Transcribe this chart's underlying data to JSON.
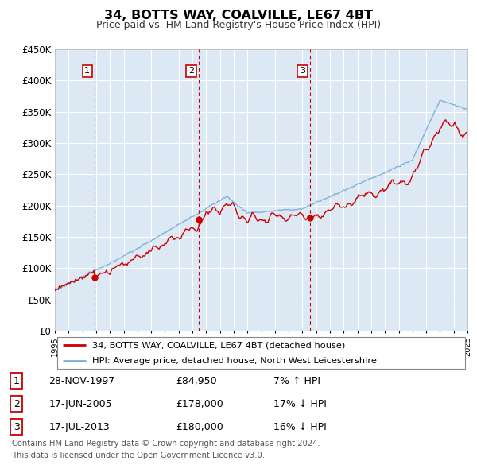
{
  "title": "34, BOTTS WAY, COALVILLE, LE67 4BT",
  "subtitle": "Price paid vs. HM Land Registry's House Price Index (HPI)",
  "x_start_year": 1995,
  "x_end_year": 2025,
  "y_min": 0,
  "y_max": 450000,
  "y_ticks": [
    0,
    50000,
    100000,
    150000,
    200000,
    250000,
    300000,
    350000,
    400000,
    450000
  ],
  "y_tick_labels": [
    "£0",
    "£50K",
    "£100K",
    "£150K",
    "£200K",
    "£250K",
    "£300K",
    "£350K",
    "£400K",
    "£450K"
  ],
  "sale_color": "#cc0000",
  "hpi_color": "#7ab0d4",
  "background_color": "#dce9f5",
  "grid_color": "#ffffff",
  "sale_dates": [
    1997.91,
    2005.46,
    2013.54
  ],
  "sale_prices": [
    84950,
    178000,
    180000
  ],
  "sale_labels": [
    "1",
    "2",
    "3"
  ],
  "sale_annotations": [
    "28-NOV-1997",
    "17-JUN-2005",
    "17-JUL-2013"
  ],
  "sale_amounts": [
    "£84,950",
    "£178,000",
    "£180,000"
  ],
  "sale_hpi_info": [
    "7% ↑ HPI",
    "17% ↓ HPI",
    "16% ↓ HPI"
  ],
  "legend_sale_label": "34, BOTTS WAY, COALVILLE, LE67 4BT (detached house)",
  "legend_hpi_label": "HPI: Average price, detached house, North West Leicestershire",
  "footer_line1": "Contains HM Land Registry data © Crown copyright and database right 2024.",
  "footer_line2": "This data is licensed under the Open Government Licence v3.0."
}
